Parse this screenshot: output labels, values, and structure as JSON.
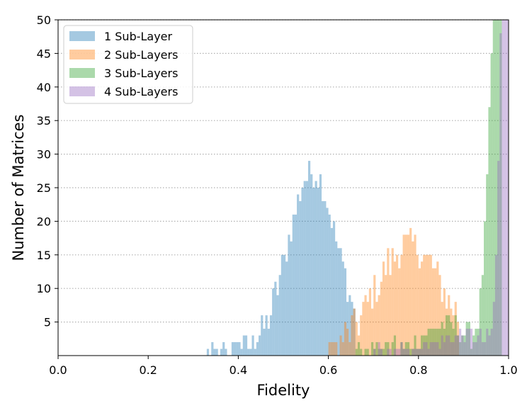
{
  "chart_data": {
    "type": "bar",
    "title": "",
    "xlabel": "Fidelity",
    "ylabel": "Number of Matrices",
    "xlim": [
      0.0,
      1.0
    ],
    "ylim": [
      0,
      50
    ],
    "x_ticks": [
      "0.0",
      "0.2",
      "0.4",
      "0.6",
      "0.8",
      "1.0"
    ],
    "y_ticks": [
      "5",
      "10",
      "15",
      "20",
      "25",
      "30",
      "35",
      "40",
      "45",
      "50"
    ],
    "grid": "horizontal dotted",
    "legend_position": "top-left",
    "bins": 200,
    "series": [
      {
        "name": "1 Sub-Layer",
        "color": "#1f77b4",
        "peaks": [
          {
            "center": 0.565,
            "sigma": 0.055,
            "peak": 27.5
          }
        ],
        "range": [
          0.33,
          0.66
        ],
        "noise": 2.5
      },
      {
        "name": "2 Sub-Layers",
        "color": "#ff7f0e",
        "peaks": [
          {
            "center": 0.78,
            "sigma": 0.075,
            "peak": 16.5
          }
        ],
        "range": [
          0.6,
          0.89
        ],
        "noise": 3.0
      },
      {
        "name": "3 Sub-Layers",
        "color": "#2ca02c",
        "peaks": [
          {
            "center": 0.975,
            "sigma": 0.018,
            "peak": 55
          },
          {
            "center": 0.86,
            "sigma": 0.06,
            "peak": 4.5
          }
        ],
        "range": [
          0.66,
          0.985
        ],
        "noise": 2.0
      },
      {
        "name": "4 Sub-Layers",
        "color": "#9467bd",
        "peaks": [
          {
            "center": 0.995,
            "sigma": 0.012,
            "peak": 80
          },
          {
            "center": 0.9,
            "sigma": 0.06,
            "peak": 3.0
          }
        ],
        "range": [
          0.7,
          1.0
        ],
        "noise": 1.5
      }
    ]
  }
}
